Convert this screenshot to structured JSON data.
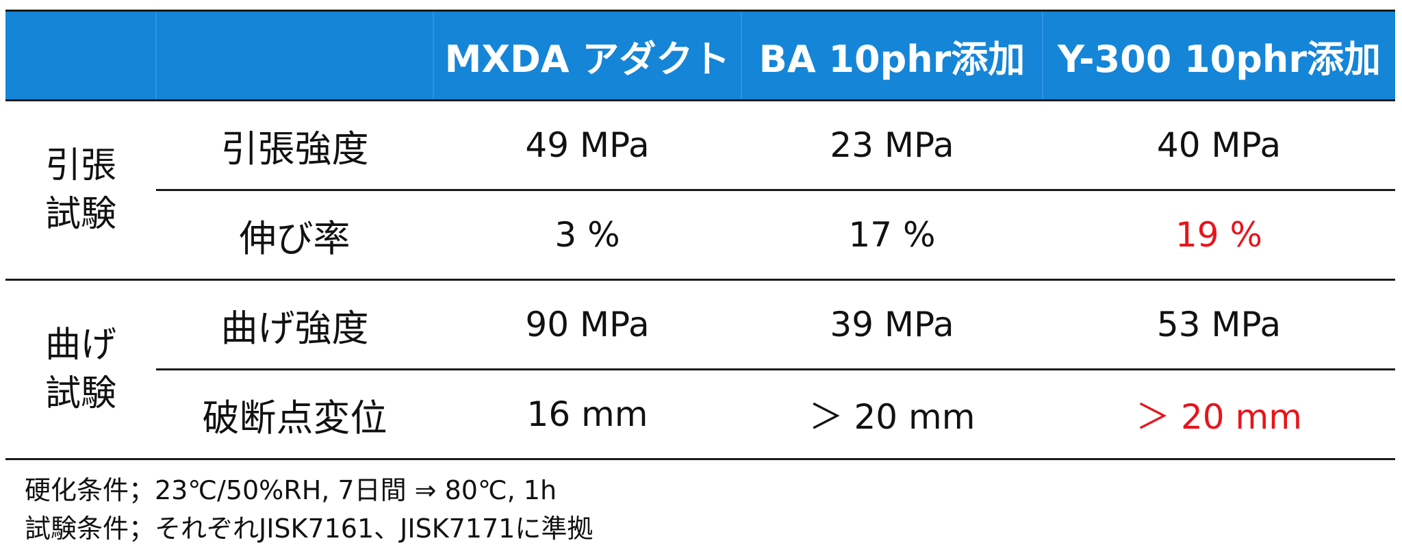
{
  "table": {
    "headers": [
      "",
      "",
      "MXDA アダクト",
      "BA 10phr添加",
      "Y-300 10phr添加"
    ],
    "groups": [
      {
        "label_line1": "引張",
        "label_line2": "試験",
        "rows": [
          {
            "property": "引張強度",
            "values": [
              "49 MPa",
              "23 MPa",
              "40 MPa"
            ]
          },
          {
            "property": "伸び率",
            "values": [
              "3 %",
              "17 %",
              "19 %"
            ]
          }
        ]
      },
      {
        "label_line1": "曲げ",
        "label_line2": "試験",
        "rows": [
          {
            "property": "曲げ強度",
            "values": [
              "90 MPa",
              "39 MPa",
              "53 MPa"
            ]
          },
          {
            "property": "破断点変位",
            "values": [
              "16 mm",
              "＞ 20 mm",
              "＞ 20 mm"
            ]
          }
        ]
      }
    ]
  },
  "notes": {
    "curing": "硬化条件；23℃/50%RH, 7日間 ⇒ 80℃, 1h",
    "testing": "試験条件；それぞれJISK7161、JISK7171に準拠"
  },
  "colors": {
    "header_bg": "#1585d8",
    "header_text": "#ffffff",
    "highlight": "#e8141c",
    "rule": "#1a1a1a"
  }
}
